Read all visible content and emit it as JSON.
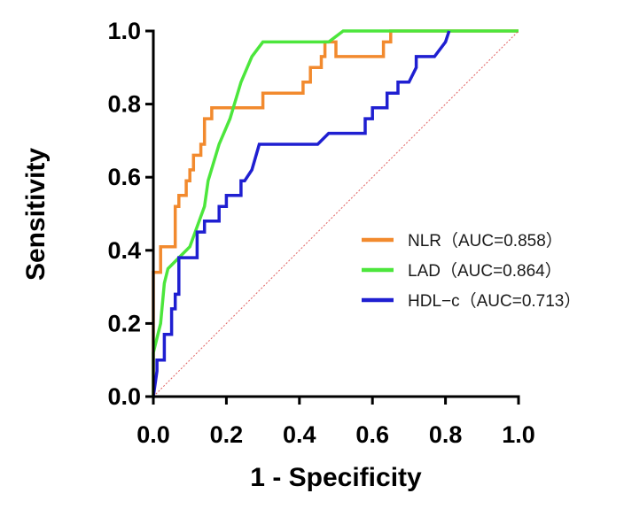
{
  "chart_data": {
    "type": "line",
    "title": "",
    "xlabel": "1 - Specificity",
    "ylabel": "Sensitivity",
    "xlim": [
      0,
      1
    ],
    "ylim": [
      0,
      1
    ],
    "x_ticks": [
      "0.0",
      "0.2",
      "0.4",
      "0.6",
      "0.8",
      "1.0"
    ],
    "y_ticks": [
      "0.0",
      "0.2",
      "0.4",
      "0.6",
      "0.8",
      "1.0"
    ],
    "grid": false,
    "legend_position": "right-center",
    "series": [
      {
        "name": "NLR（AUC=0.858）",
        "color": "#f28a2e",
        "x": [
          0,
          0,
          0.02,
          0.02,
          0.06,
          0.06,
          0.07,
          0.07,
          0.09,
          0.09,
          0.1,
          0.1,
          0.11,
          0.11,
          0.13,
          0.13,
          0.14,
          0.14,
          0.16,
          0.16,
          0.3,
          0.3,
          0.41,
          0.41,
          0.43,
          0.43,
          0.46,
          0.46,
          0.47,
          0.47,
          0.5,
          0.5,
          0.63,
          0.63,
          0.65,
          0.65,
          1.0
        ],
        "y": [
          0,
          0.34,
          0.34,
          0.41,
          0.41,
          0.52,
          0.52,
          0.55,
          0.55,
          0.59,
          0.59,
          0.62,
          0.62,
          0.66,
          0.66,
          0.69,
          0.69,
          0.76,
          0.76,
          0.79,
          0.79,
          0.83,
          0.83,
          0.86,
          0.86,
          0.9,
          0.9,
          0.93,
          0.93,
          0.97,
          0.97,
          0.93,
          0.93,
          0.97,
          0.97,
          1.0,
          1.0
        ]
      },
      {
        "name": "LAD（AUC=0.864）",
        "color": "#4ce63c",
        "x": [
          0,
          0,
          0.02,
          0.03,
          0.04,
          0.07,
          0.1,
          0.14,
          0.15,
          0.18,
          0.21,
          0.24,
          0.27,
          0.3,
          0.32,
          0.48,
          0.52,
          1.0
        ],
        "y": [
          0,
          0.12,
          0.2,
          0.31,
          0.35,
          0.38,
          0.41,
          0.52,
          0.59,
          0.69,
          0.76,
          0.86,
          0.93,
          0.97,
          0.97,
          0.97,
          1.0,
          1.0
        ]
      },
      {
        "name": "HDL−c（AUC=0.713）",
        "color": "#1f1fd1",
        "x": [
          0,
          0.01,
          0.01,
          0.03,
          0.03,
          0.05,
          0.05,
          0.06,
          0.06,
          0.07,
          0.07,
          0.12,
          0.12,
          0.14,
          0.14,
          0.18,
          0.18,
          0.2,
          0.2,
          0.24,
          0.24,
          0.25,
          0.27,
          0.29,
          0.45,
          0.48,
          0.58,
          0.58,
          0.6,
          0.6,
          0.64,
          0.64,
          0.67,
          0.67,
          0.7,
          0.72,
          0.72,
          0.77,
          0.77,
          0.8,
          0.81
        ],
        "y": [
          0,
          0.07,
          0.1,
          0.1,
          0.17,
          0.17,
          0.24,
          0.24,
          0.28,
          0.28,
          0.38,
          0.38,
          0.45,
          0.45,
          0.48,
          0.48,
          0.52,
          0.52,
          0.55,
          0.55,
          0.59,
          0.59,
          0.62,
          0.69,
          0.69,
          0.72,
          0.72,
          0.76,
          0.76,
          0.79,
          0.79,
          0.83,
          0.83,
          0.86,
          0.86,
          0.9,
          0.93,
          0.93,
          0.93,
          0.97,
          1.0
        ]
      },
      {
        "name": "",
        "color": "#e06060",
        "style": "dotted",
        "x": [
          0,
          1
        ],
        "y": [
          0,
          1
        ]
      }
    ]
  }
}
